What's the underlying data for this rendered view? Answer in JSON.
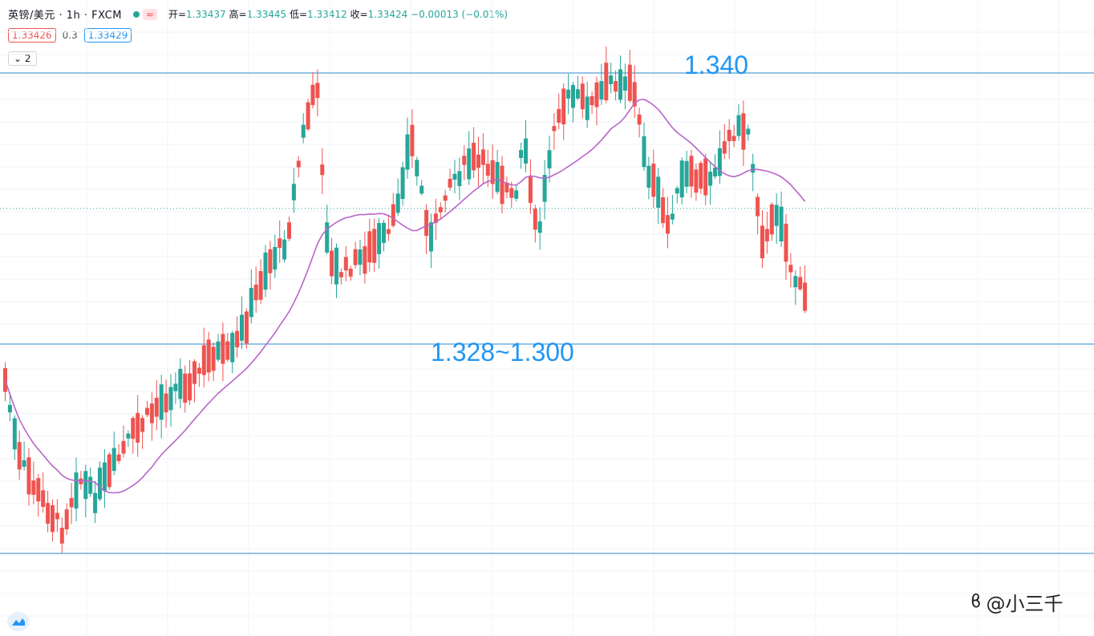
{
  "header": {
    "symbol": "英镑/美元 · 1h · FXCM",
    "badge": "≈",
    "open_label": "开=",
    "open": "1.33437",
    "high_label": "高=",
    "high": "1.33445",
    "low_label": "低=",
    "low": "1.33412",
    "close_label": "收=",
    "close": "1.33424",
    "change": "−0.00013 (−0.01%)"
  },
  "prices": {
    "sell": "1.33426",
    "spread": "0.3",
    "buy": "1.33429"
  },
  "indicators_toggle": "2",
  "watermark": "@小三千",
  "colors": {
    "up": "#ef5350",
    "down": "#26a69a",
    "ma": "#b865c9",
    "hline": "#2a87c8",
    "annotation": "#2196f3"
  },
  "chart_data": {
    "type": "candlestick",
    "candle_count": 170,
    "up_color": "#ef5350",
    "down_color": "#26a69a",
    "price_lines": [
      {
        "label": "1.340"
      },
      {
        "label": "1.328~1.300"
      },
      {
        "label": ""
      }
    ],
    "moving_average": {
      "color": "#b865c9"
    },
    "grid": true
  }
}
